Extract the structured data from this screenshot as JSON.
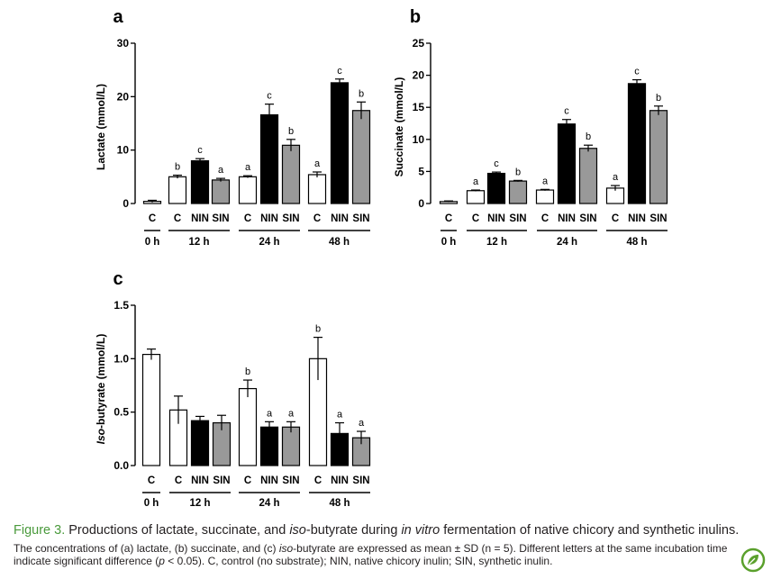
{
  "chart_data": [
    {
      "type": "bar",
      "panel": "a",
      "ylabel": "Lactate (mmol/L)",
      "ylim": [
        0,
        30
      ],
      "yticks": [
        "0",
        "10",
        "20",
        "30"
      ],
      "categories": [
        "C",
        "C",
        "NIN",
        "SIN",
        "C",
        "NIN",
        "SIN",
        "C",
        "NIN",
        "SIN"
      ],
      "groups": [
        "0 h",
        "12 h",
        "24 h",
        "48 h"
      ],
      "fills": [
        "#ffffff",
        "#ffffff",
        "#000000",
        "#999999",
        "#ffffff",
        "#000000",
        "#999999",
        "#ffffff",
        "#000000",
        "#999999"
      ],
      "values": [
        0.4,
        5.0,
        8.0,
        4.4,
        5.0,
        16.6,
        10.9,
        5.4,
        22.6,
        17.4
      ],
      "errors": [
        0.2,
        0.3,
        0.4,
        0.3,
        0.2,
        2.0,
        1.1,
        0.5,
        0.7,
        1.6
      ],
      "letters": [
        "",
        "b",
        "c",
        "a",
        "a",
        "c",
        "b",
        "a",
        "c",
        "b"
      ]
    },
    {
      "type": "bar",
      "panel": "b",
      "ylabel": "Succinate (mmol/L)",
      "ylim": [
        0,
        25
      ],
      "yticks": [
        "0",
        "5",
        "10",
        "15",
        "20",
        "25"
      ],
      "categories": [
        "C",
        "C",
        "NIN",
        "SIN",
        "C",
        "NIN",
        "SIN",
        "C",
        "NIN",
        "SIN"
      ],
      "groups": [
        "0 h",
        "12 h",
        "24 h",
        "48 h"
      ],
      "fills": [
        "#ffffff",
        "#ffffff",
        "#000000",
        "#999999",
        "#ffffff",
        "#000000",
        "#999999",
        "#ffffff",
        "#000000",
        "#999999"
      ],
      "values": [
        0.3,
        2.0,
        4.7,
        3.5,
        2.1,
        12.4,
        8.6,
        2.4,
        18.7,
        14.5
      ],
      "errors": [
        0.1,
        0.1,
        0.2,
        0.1,
        0.1,
        0.7,
        0.5,
        0.4,
        0.6,
        0.7
      ],
      "letters": [
        "",
        "a",
        "c",
        "b",
        "a",
        "c",
        "b",
        "a",
        "c",
        "b"
      ]
    },
    {
      "type": "bar",
      "panel": "c",
      "ylabel_italic": "Iso",
      "ylabel": "-butyrate (mmol/L)",
      "ylim": [
        0,
        1.5
      ],
      "yticks": [
        "0.0",
        "0.5",
        "1.0",
        "1.5"
      ],
      "categories": [
        "C",
        "C",
        "NIN",
        "SIN",
        "C",
        "NIN",
        "SIN",
        "C",
        "NIN",
        "SIN"
      ],
      "groups": [
        "0 h",
        "12 h",
        "24 h",
        "48 h"
      ],
      "fills": [
        "#ffffff",
        "#ffffff",
        "#000000",
        "#999999",
        "#ffffff",
        "#000000",
        "#999999",
        "#ffffff",
        "#000000",
        "#999999"
      ],
      "values": [
        1.04,
        0.52,
        0.42,
        0.4,
        0.72,
        0.36,
        0.36,
        1.0,
        0.3,
        0.26
      ],
      "errors": [
        0.05,
        0.13,
        0.04,
        0.07,
        0.08,
        0.05,
        0.05,
        0.2,
        0.1,
        0.06
      ],
      "letters": [
        "",
        "",
        "",
        "",
        "b",
        "a",
        "a",
        "b",
        "a",
        "a"
      ]
    }
  ],
  "caption": {
    "title_label": "Figure 3.",
    "title_part1": " Productions of lactate, succinate, and ",
    "title_italic1": "iso",
    "title_part2": "-butyrate during ",
    "title_italic2": "in vitro",
    "title_part3": " fermentation of native chicory and synthetic inulins.",
    "body_line1_a": "The concentrations of (a) lactate, (b) succinate, and (c) ",
    "body_line1_italic": "iso",
    "body_line1_b": "-butyrate are expressed as mean ± SD (n = 5). Different letters at the same incubation time",
    "body_line2_a": "indicate significant difference (",
    "body_line2_italic": "p",
    "body_line2_b": " < 0.05). C, control (no substrate); NIN, native chicory inulin; SIN, synthetic inulin."
  },
  "icons": {
    "logo": "leaf-logo-icon"
  },
  "colors": {
    "caption_title": "#4a9a3c",
    "logo": "#5aa02c"
  }
}
